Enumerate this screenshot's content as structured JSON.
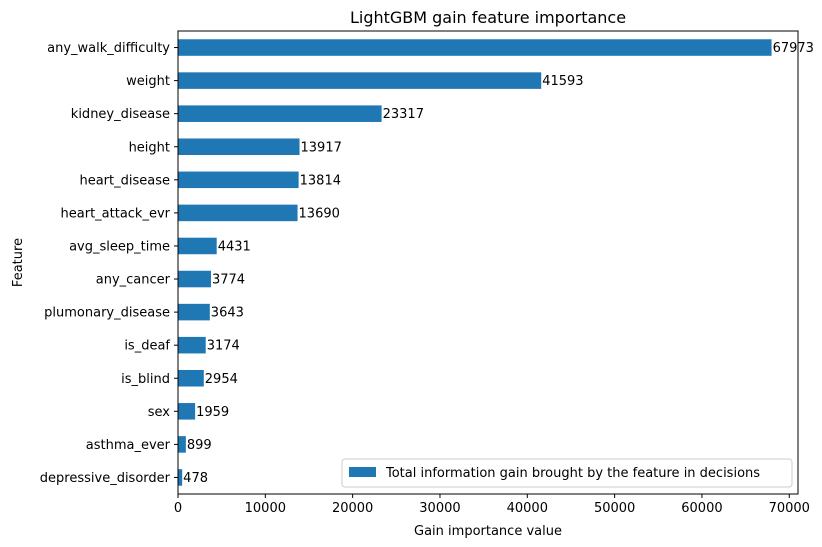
{
  "chart_data": {
    "type": "bar",
    "orientation": "horizontal",
    "title": "LightGBM gain feature importance",
    "xlabel": "Gain importance value",
    "ylabel": "Feature",
    "xlim": [
      0,
      71000
    ],
    "xticks": [
      0,
      10000,
      20000,
      30000,
      40000,
      50000,
      60000,
      70000
    ],
    "grid": false,
    "legend_position": "bottom-right",
    "bar_color": "#1f77b4",
    "categories": [
      "any_walk_difficulty",
      "weight",
      "kidney_disease",
      "height",
      "heart_disease",
      "heart_attack_evr",
      "avg_sleep_time",
      "any_cancer",
      "plumonary_disease",
      "is_deaf",
      "is_blind",
      "sex",
      "asthma_ever",
      "depressive_disorder"
    ],
    "series": [
      {
        "name": "Total information gain brought by the feature in decisions",
        "values": [
          67973,
          41593,
          23317,
          13917,
          13814,
          13690,
          4431,
          3774,
          3643,
          3174,
          2954,
          1959,
          899,
          478
        ]
      }
    ]
  }
}
